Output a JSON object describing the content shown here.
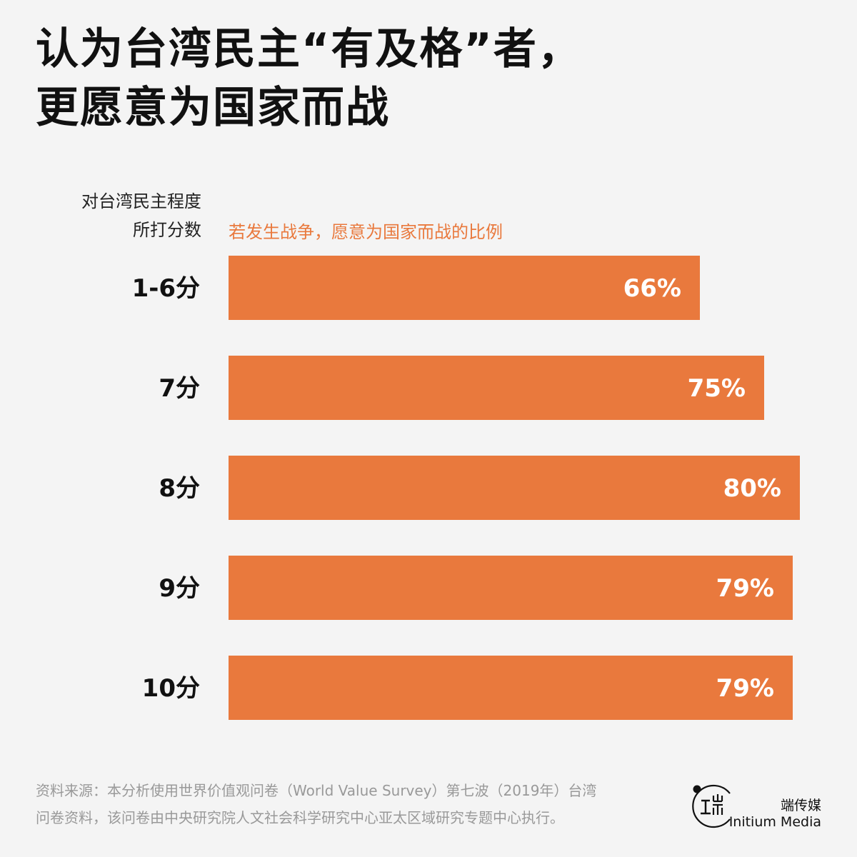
{
  "title_lines": [
    "认为台湾民主“有及格”者，",
    "更愿意为国家而战"
  ],
  "y_header_lines": [
    "对台湾民主程度",
    "所打分数"
  ],
  "x_header": "若发生战争，愿意为国家而战的比例",
  "colors": {
    "bar": "#e9793d",
    "accent_text": "#e9793d",
    "value_label": "#ffffff",
    "background": "#f4f4f4"
  },
  "chart_data": {
    "type": "bar",
    "orientation": "horizontal",
    "categories": [
      "1-6分",
      "7分",
      "8分",
      "9分",
      "10分"
    ],
    "values": [
      66,
      75,
      80,
      79,
      79
    ],
    "value_labels": [
      "66%",
      "75%",
      "80%",
      "79%",
      "79%"
    ],
    "xlim": [
      0,
      80
    ]
  },
  "footer_lines": [
    "资料来源：本分析使用世界价值观问卷（World Value Survey）第七波（2019年）台湾",
    "问卷资料，该问卷由中央研究院人文社会科学研究中心亚太区域研究专题中心执行。"
  ],
  "logo": {
    "name_cn": "端传媒",
    "name_en": "Initium Media",
    "icon": "initium-logo-icon"
  }
}
